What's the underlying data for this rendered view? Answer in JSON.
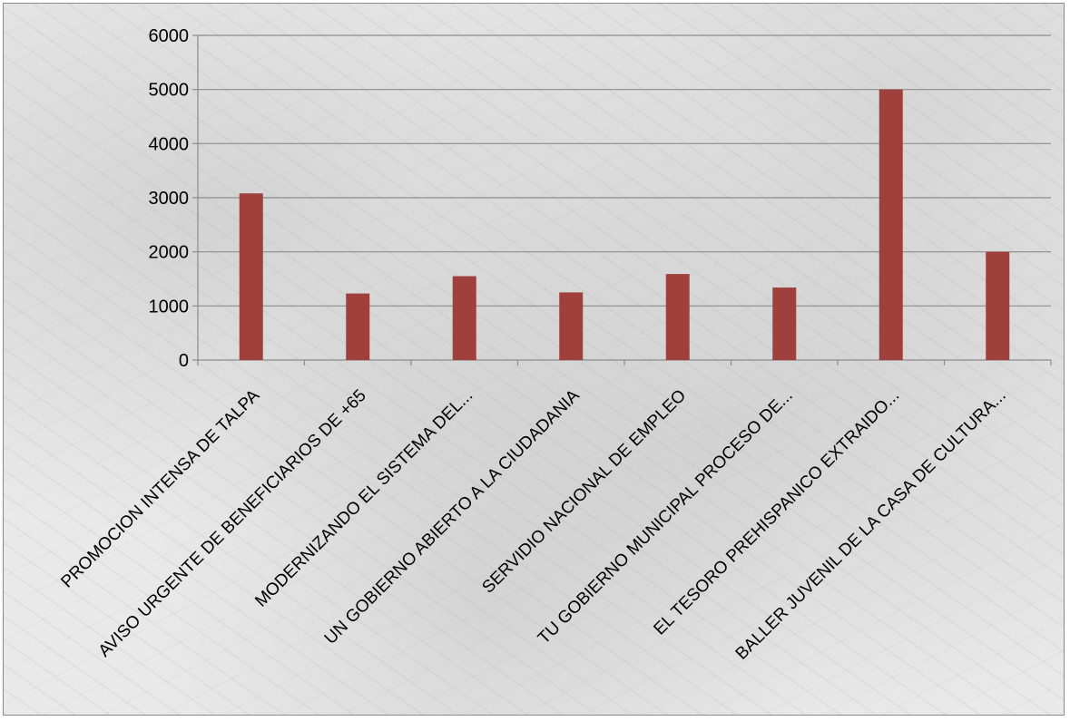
{
  "colors": {
    "bar": "#a0403c",
    "gridline": "#8c8c8c",
    "axis": "#8c8c8c"
  },
  "chart_data": {
    "type": "bar",
    "title": "",
    "xlabel": "",
    "ylabel": "",
    "ylim": [
      0,
      6000
    ],
    "yticks": [
      "0",
      "1000",
      "2000",
      "3000",
      "4000",
      "5000",
      "6000"
    ],
    "grid": true,
    "legend": "none",
    "categories": [
      "PROMOCION INTENSA DE TALPA",
      "AVISO URGENTE DE BENEFICIARIOS DE +65",
      "MODERNIZANDO EL SISTEMA DEL...",
      "UN GOBIERNO ABIERTO A LA CIUDADANIA",
      "SERVIDIO NACIONAL DE EMPLEO",
      "TU GOBIERNO MUNICIPAL PROCESO DE...",
      "EL TESORO PREHISPANICO EXTRAIDO...",
      "BALLER JUVENIL DE LA CASA DE CULTURA..."
    ],
    "values": [
      3080,
      1230,
      1550,
      1250,
      1590,
      1340,
      5000,
      2000
    ]
  }
}
